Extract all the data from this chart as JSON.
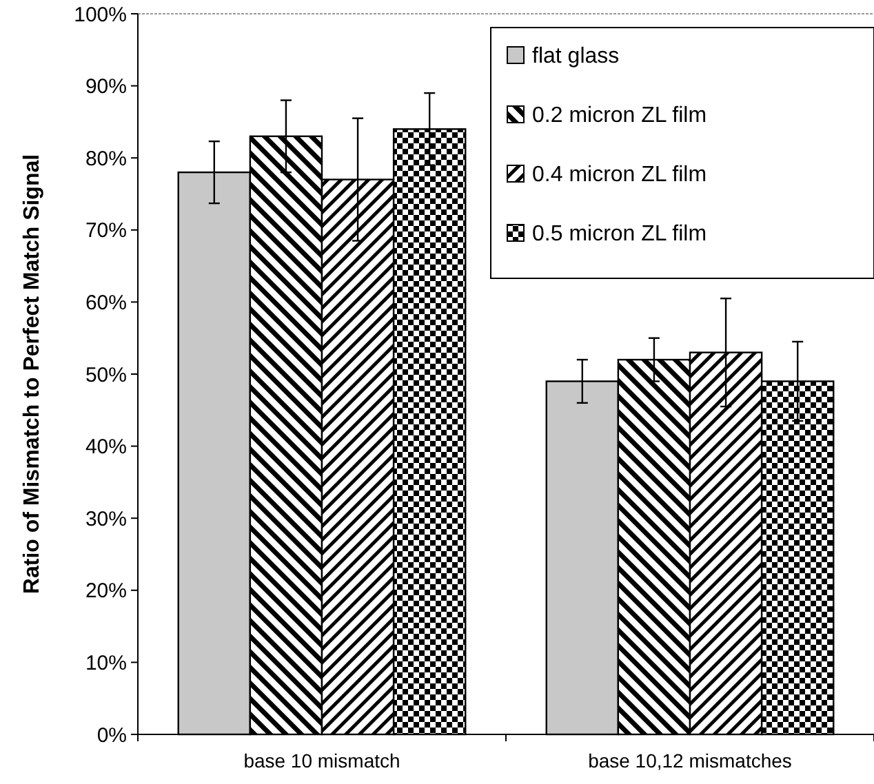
{
  "chart_data": {
    "type": "bar",
    "ylabel": "Ratio of Mismatch to Perfect Match Signal",
    "categories": [
      "base 10 mismatch",
      "base 10,12 mismatches"
    ],
    "series": [
      {
        "name": "flat glass",
        "color": "#c8c8c8",
        "values": [
          78,
          49
        ],
        "errors": [
          4.3,
          3
        ]
      },
      {
        "name": "0.2 micron ZL film",
        "color": "#000000",
        "values": [
          83,
          52
        ],
        "errors": [
          5,
          3
        ]
      },
      {
        "name": "0.4 micron ZL film",
        "color": "#000000",
        "values": [
          77,
          53
        ],
        "errors": [
          8.5,
          7.5
        ]
      },
      {
        "name": "0.5 micron ZL film",
        "color": "#000000",
        "values": [
          84,
          49
        ],
        "errors": [
          5,
          5.5
        ]
      }
    ],
    "ylim": [
      0,
      100
    ],
    "yticks": [
      {
        "value": 0,
        "label": "0%"
      },
      {
        "value": 10,
        "label": "10%"
      },
      {
        "value": 20,
        "label": "20%"
      },
      {
        "value": 30,
        "label": "30%"
      },
      {
        "value": 40,
        "label": "40%"
      },
      {
        "value": 50,
        "label": "50%"
      },
      {
        "value": 60,
        "label": "60%"
      },
      {
        "value": 70,
        "label": "70%"
      },
      {
        "value": 80,
        "label": "80%"
      },
      {
        "value": 90,
        "label": "90%"
      },
      {
        "value": 100,
        "label": "100%"
      }
    ],
    "grid": false,
    "legend": "top right"
  }
}
